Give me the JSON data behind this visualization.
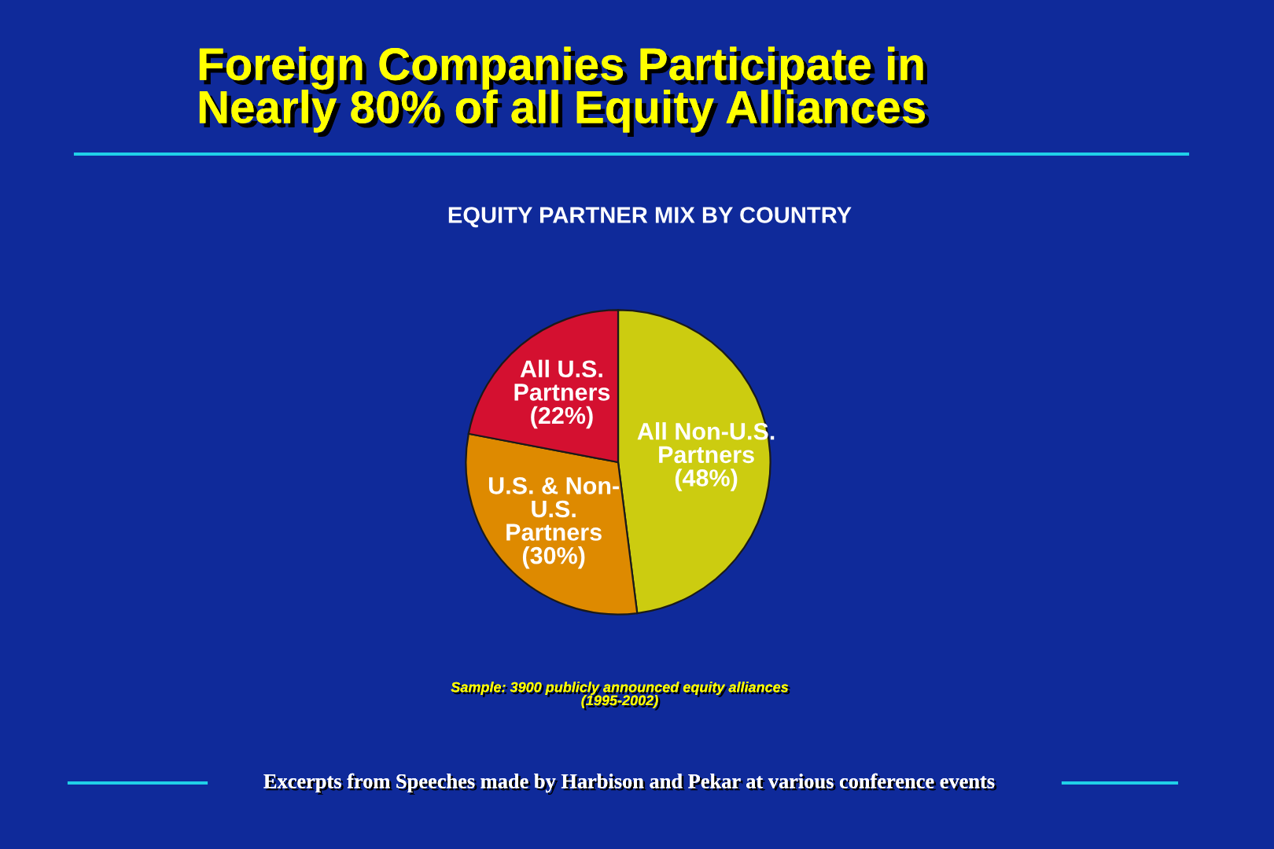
{
  "chart_data": {
    "type": "pie",
    "title": "Foreign Companies Participate in\nNearly 80% of all Equity Alliances",
    "subtitle": "EQUITY PARTNER MIX BY COUNTRY",
    "categories": [
      "All Non-U.S.\nPartners",
      "U.S. & Non-\nU.S.\nPartners",
      "All U.S.\nPartners"
    ],
    "values": [
      48,
      30,
      22
    ],
    "colors": [
      "#cccc10",
      "#de8a00",
      "#d41030"
    ],
    "value_labels": [
      "(48%)",
      "(30%)",
      "(22%)"
    ],
    "annotations": [
      "Sample: 3900 publicly announced equity alliances\n(1995-2002)",
      "Excerpts from Speeches made by Harbison and Pekar at various conference events"
    ]
  }
}
